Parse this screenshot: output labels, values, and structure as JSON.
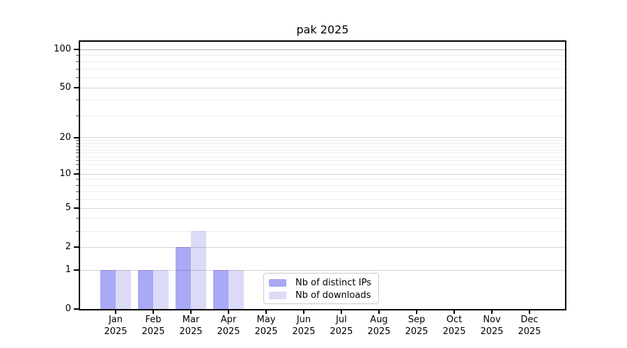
{
  "chart_data": {
    "type": "bar",
    "title": "pak 2025",
    "categories": [
      "Jan 2025",
      "Feb 2025",
      "Mar 2025",
      "Apr 2025",
      "May 2025",
      "Jun 2025",
      "Jul 2025",
      "Aug 2025",
      "Sep 2025",
      "Oct 2025",
      "Nov 2025",
      "Dec 2025"
    ],
    "x_tick_months": [
      "Jan",
      "Feb",
      "Mar",
      "Apr",
      "May",
      "Jun",
      "Jul",
      "Aug",
      "Sep",
      "Oct",
      "Nov",
      "Dec"
    ],
    "x_tick_year": "2025",
    "series": [
      {
        "name": "Nb of distinct IPs",
        "color": "#a9a9f6",
        "values": [
          1,
          1,
          2,
          1,
          0,
          0,
          0,
          0,
          0,
          0,
          0,
          0
        ]
      },
      {
        "name": "Nb of downloads",
        "color": "#dbdbf8",
        "values": [
          1,
          1,
          3,
          1,
          0,
          0,
          0,
          0,
          0,
          0,
          0,
          0
        ]
      }
    ],
    "yaxis": {
      "scale": "log1p",
      "tick_values": [
        0,
        1,
        2,
        5,
        10,
        20,
        50,
        100
      ],
      "tick_labels": [
        "0",
        "1",
        "2",
        "5",
        "10",
        "20",
        "50",
        "100"
      ],
      "minor_tick_values": [
        3,
        4,
        6,
        7,
        8,
        9,
        11,
        12,
        13,
        14,
        15,
        16,
        17,
        18,
        19,
        30,
        40,
        60,
        70,
        80,
        90
      ],
      "max": 115
    },
    "legend": {
      "position": "lower center"
    },
    "grid": "horizontal"
  }
}
